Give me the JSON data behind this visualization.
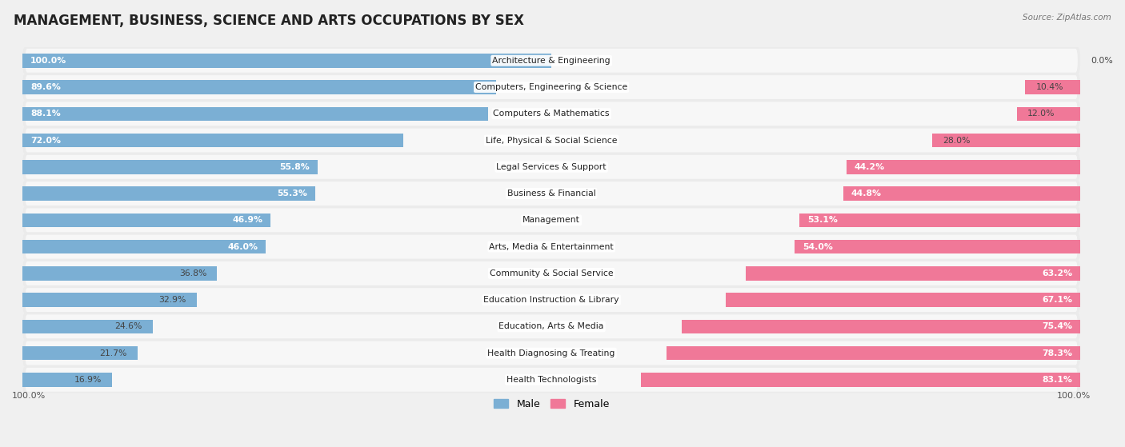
{
  "title": "MANAGEMENT, BUSINESS, SCIENCE AND ARTS OCCUPATIONS BY SEX",
  "source": "Source: ZipAtlas.com",
  "categories": [
    "Architecture & Engineering",
    "Computers, Engineering & Science",
    "Computers & Mathematics",
    "Life, Physical & Social Science",
    "Legal Services & Support",
    "Business & Financial",
    "Management",
    "Arts, Media & Entertainment",
    "Community & Social Service",
    "Education Instruction & Library",
    "Education, Arts & Media",
    "Health Diagnosing & Treating",
    "Health Technologists"
  ],
  "male_pct": [
    100.0,
    89.6,
    88.1,
    72.0,
    55.8,
    55.3,
    46.9,
    46.0,
    36.8,
    32.9,
    24.6,
    21.7,
    16.9
  ],
  "female_pct": [
    0.0,
    10.4,
    12.0,
    28.0,
    44.2,
    44.8,
    53.1,
    54.0,
    63.2,
    67.1,
    75.4,
    78.3,
    83.1
  ],
  "male_color": "#7bafd4",
  "female_color": "#f07898",
  "row_bg_color": "#ebebeb",
  "row_inner_color": "#f7f7f7",
  "bg_color": "#f0f0f0",
  "title_fontsize": 12,
  "bar_height": 0.62,
  "legend_male": "Male",
  "legend_female": "Female",
  "xlim_left": -100,
  "xlim_right": 100
}
